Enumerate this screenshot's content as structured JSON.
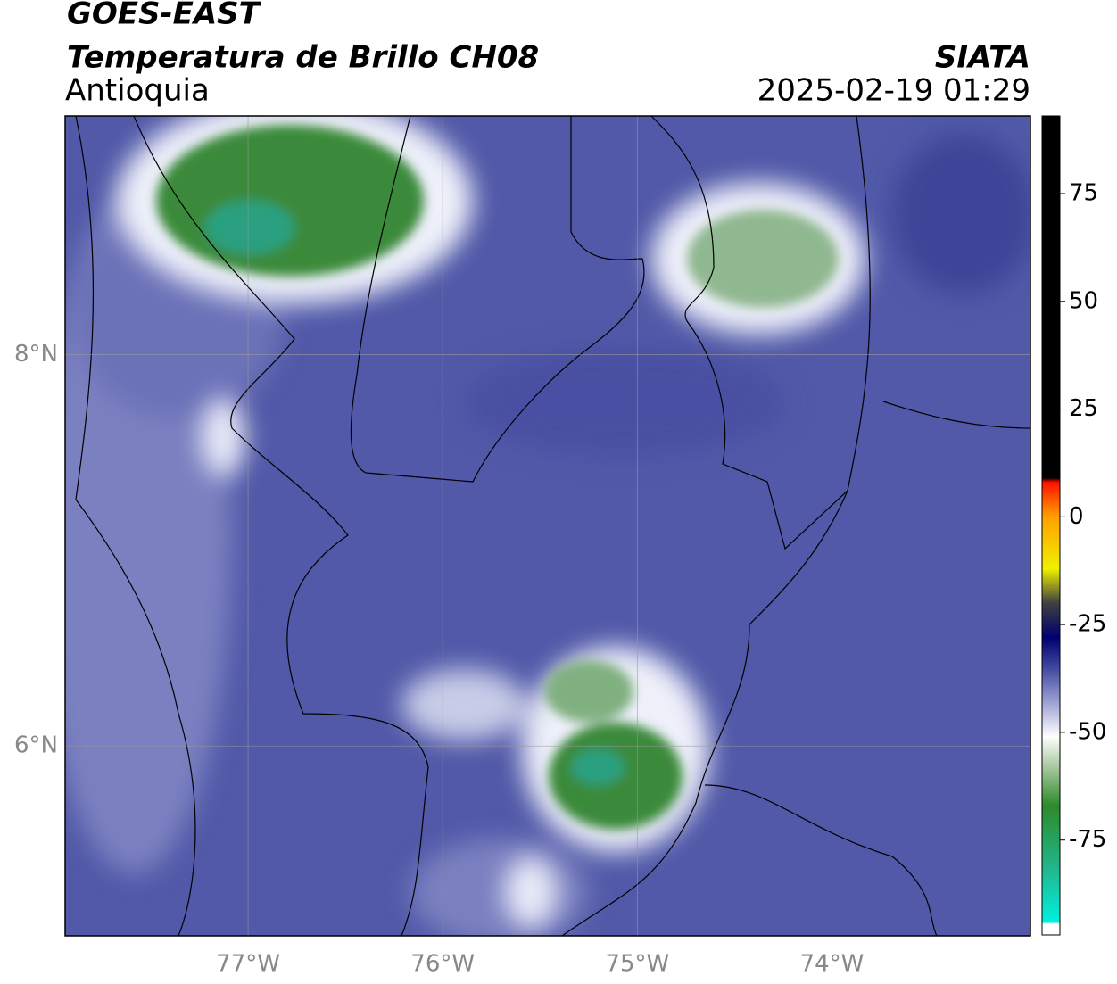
{
  "header": {
    "title": "GOES-EAST",
    "subtitle": "Temperatura de Brillo CH08",
    "region": "Antioquia",
    "source": "SIATA",
    "timestamp": "2025-02-19 01:29"
  },
  "map": {
    "xlim": [
      -77.94,
      -72.98
    ],
    "ylim": [
      5.03,
      9.22
    ],
    "xticks": [
      {
        "value": -77,
        "label": "77°W"
      },
      {
        "value": -76,
        "label": "76°W"
      },
      {
        "value": -75,
        "label": "75°W"
      },
      {
        "value": -74,
        "label": "74°W"
      }
    ],
    "yticks": [
      {
        "value": 8,
        "label": "8°N"
      },
      {
        "value": 6,
        "label": "6°N"
      }
    ],
    "grid": true
  },
  "colorbar": {
    "lim": [
      -97,
      93
    ],
    "ticks": [
      75,
      50,
      25,
      0,
      -25,
      -50,
      -75
    ],
    "colormap": [
      {
        "value": -97,
        "color": "#ffffff"
      },
      {
        "value": -94.5,
        "color": "#ffffff"
      },
      {
        "value": -94,
        "color": "#00f0e0"
      },
      {
        "value": -82,
        "color": "#20b890"
      },
      {
        "value": -67,
        "color": "#2e8a2a"
      },
      {
        "value": -58,
        "color": "#a8c8a0"
      },
      {
        "value": -51,
        "color": "#ffffff"
      },
      {
        "value": -44,
        "color": "#a8acd8"
      },
      {
        "value": -35,
        "color": "#4048a0"
      },
      {
        "value": -28,
        "color": "#000070"
      },
      {
        "value": -20,
        "color": "#404040"
      },
      {
        "value": -12,
        "color": "#f0f000"
      },
      {
        "value": 0,
        "color": "#ffa000"
      },
      {
        "value": 8,
        "color": "#ff1000"
      },
      {
        "value": 9,
        "color": "#000000"
      },
      {
        "value": 93,
        "color": "#000000"
      }
    ]
  }
}
